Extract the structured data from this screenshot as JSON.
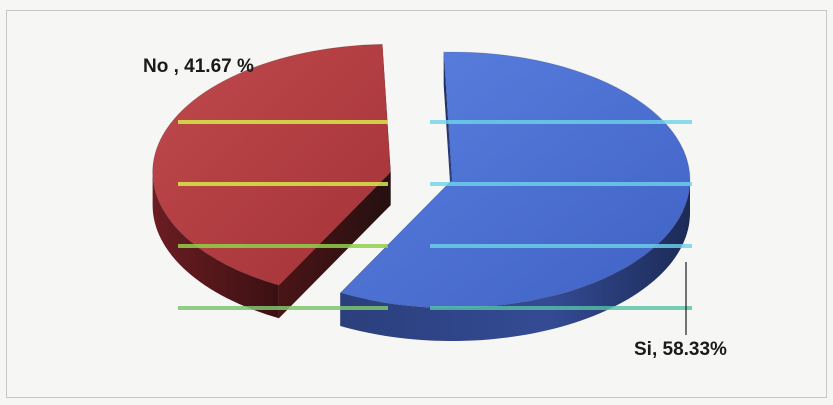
{
  "chart_data": {
    "type": "pie",
    "style": "3d-exploded",
    "slices": [
      {
        "category": "No",
        "value": 41.67,
        "label": "No , 41.67 %",
        "color": "#b23a3e"
      },
      {
        "category": "Si",
        "value": 58.33,
        "label": "Si, 58.33%",
        "color": "#4a6fd1"
      }
    ],
    "legend": "none",
    "title": ""
  }
}
